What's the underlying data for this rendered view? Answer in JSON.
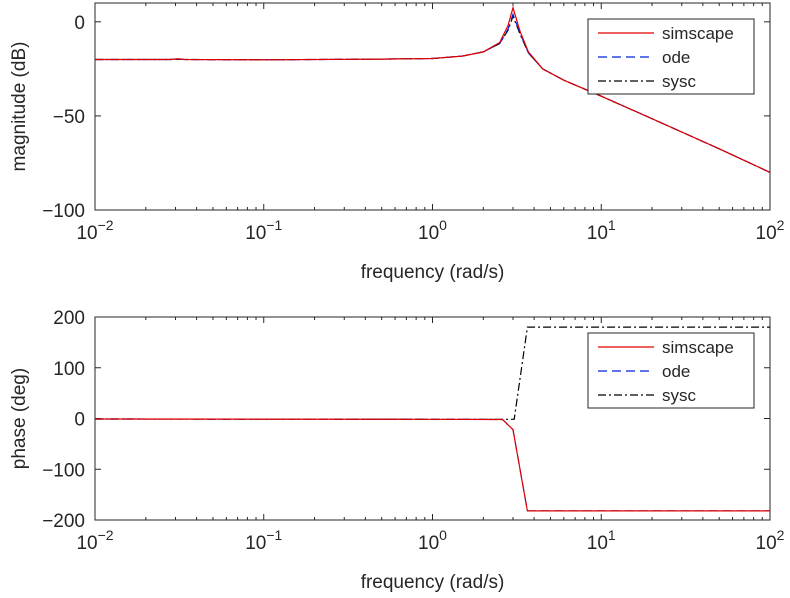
{
  "chart_data": [
    {
      "type": "line",
      "xscale": "log",
      "xlim": [
        0.01,
        100
      ],
      "ylim": [
        -100,
        10
      ],
      "xlabel": "frequency (rad/s)",
      "ylabel": "magnitude (dB)",
      "xticks": [
        {
          "value": 0.01,
          "base": "10",
          "exp": "−2"
        },
        {
          "value": 0.1,
          "base": "10",
          "exp": "−1"
        },
        {
          "value": 1,
          "base": "10",
          "exp": "0"
        },
        {
          "value": 10,
          "base": "10",
          "exp": "1"
        },
        {
          "value": 100,
          "base": "10",
          "exp": "2"
        }
      ],
      "yticks": [
        {
          "value": 0,
          "label": "0"
        },
        {
          "value": -50,
          "label": "−50"
        },
        {
          "value": -100,
          "label": "−100"
        }
      ],
      "grid": false,
      "legend_position": "top-right",
      "series": [
        {
          "name": "simscape",
          "color": "#e00000",
          "dash": "solid",
          "points": [
            [
              0.01,
              -20
            ],
            [
              0.028,
              -20
            ],
            [
              0.031,
              -19.6
            ],
            [
              0.034,
              -20
            ],
            [
              0.1,
              -20.2
            ],
            [
              0.5,
              -19.8
            ],
            [
              1,
              -19.5
            ],
            [
              1.5,
              -18.2
            ],
            [
              2,
              -16
            ],
            [
              2.5,
              -11
            ],
            [
              2.8,
              -2
            ],
            [
              3.0,
              7.5
            ],
            [
              3.3,
              -5
            ],
            [
              3.7,
              -16
            ],
            [
              4.5,
              -25
            ],
            [
              6,
              -31
            ],
            [
              10,
              -39.5
            ],
            [
              20,
              -51.5
            ],
            [
              50,
              -67.5
            ],
            [
              100,
              -80
            ]
          ]
        },
        {
          "name": "ode",
          "color": "#0020e0",
          "dash": "dashed",
          "points": [
            [
              0.01,
              -20
            ],
            [
              0.028,
              -20
            ],
            [
              0.031,
              -19.8
            ],
            [
              0.034,
              -20
            ],
            [
              0.1,
              -20.2
            ],
            [
              0.5,
              -19.8
            ],
            [
              1,
              -19.5
            ],
            [
              1.5,
              -18.2
            ],
            [
              2,
              -16
            ],
            [
              2.5,
              -11.5
            ],
            [
              2.8,
              -4
            ],
            [
              3.0,
              4
            ],
            [
              3.3,
              -6
            ],
            [
              3.7,
              -16.5
            ],
            [
              4.5,
              -25
            ],
            [
              6,
              -31
            ],
            [
              10,
              -39.5
            ],
            [
              20,
              -51.5
            ],
            [
              50,
              -67.5
            ],
            [
              100,
              -80
            ]
          ]
        },
        {
          "name": "sysc",
          "color": "#000000",
          "dash": "dashdot",
          "points": [
            [
              0.01,
              -20
            ],
            [
              0.028,
              -20
            ],
            [
              0.031,
              -19.8
            ],
            [
              0.034,
              -20
            ],
            [
              0.1,
              -20.2
            ],
            [
              0.5,
              -19.8
            ],
            [
              1,
              -19.5
            ],
            [
              1.5,
              -18.2
            ],
            [
              2,
              -16
            ],
            [
              2.5,
              -11.5
            ],
            [
              2.8,
              -4.5
            ],
            [
              3.0,
              3
            ],
            [
              3.3,
              -6.5
            ],
            [
              3.7,
              -16.5
            ],
            [
              4.5,
              -25
            ],
            [
              6,
              -31
            ],
            [
              10,
              -39.5
            ],
            [
              20,
              -51.5
            ],
            [
              50,
              -67.5
            ],
            [
              100,
              -80
            ]
          ]
        }
      ]
    },
    {
      "type": "line",
      "xscale": "log",
      "xlim": [
        0.01,
        100
      ],
      "ylim": [
        -200,
        200
      ],
      "xlabel": "frequency (rad/s)",
      "ylabel": "phase (deg)",
      "xticks": [
        {
          "value": 0.01,
          "base": "10",
          "exp": "−2"
        },
        {
          "value": 0.1,
          "base": "10",
          "exp": "−1"
        },
        {
          "value": 1,
          "base": "10",
          "exp": "0"
        },
        {
          "value": 10,
          "base": "10",
          "exp": "1"
        },
        {
          "value": 100,
          "base": "10",
          "exp": "2"
        }
      ],
      "yticks": [
        {
          "value": 200,
          "label": "200"
        },
        {
          "value": 100,
          "label": "100"
        },
        {
          "value": 0,
          "label": "0"
        },
        {
          "value": -100,
          "label": "−100"
        },
        {
          "value": -200,
          "label": "−200"
        }
      ],
      "grid": false,
      "legend_position": "top-right",
      "series": [
        {
          "name": "simscape",
          "color": "#e00000",
          "dash": "solid",
          "points": [
            [
              0.01,
              -1
            ],
            [
              1,
              -1.5
            ],
            [
              2.6,
              -2
            ],
            [
              3.0,
              -22
            ],
            [
              3.65,
              -182
            ],
            [
              10,
              -182
            ],
            [
              100,
              -182
            ]
          ]
        },
        {
          "name": "ode",
          "color": "#0020e0",
          "dash": "dashed",
          "points": [
            [
              0.01,
              -1
            ],
            [
              1,
              -1.5
            ],
            [
              2.6,
              -2
            ],
            [
              3.0,
              -22
            ],
            [
              3.65,
              -182
            ],
            [
              10,
              -182
            ],
            [
              100,
              -182
            ]
          ]
        },
        {
          "name": "sysc",
          "color": "#000000",
          "dash": "dashdot",
          "points": [
            [
              0.01,
              -1
            ],
            [
              1,
              -1.5
            ],
            [
              2.8,
              -1.5
            ],
            [
              3.05,
              -1.5
            ],
            [
              3.65,
              180
            ],
            [
              10,
              180
            ],
            [
              100,
              180
            ]
          ]
        }
      ]
    }
  ]
}
